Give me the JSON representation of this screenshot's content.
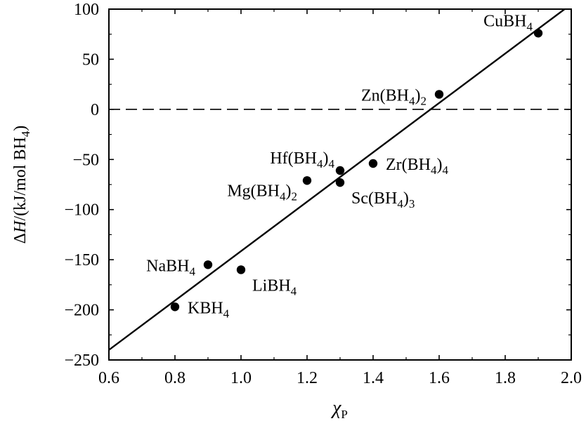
{
  "chart_data": {
    "type": "scatter",
    "xlabel_symbol": "χ",
    "xlabel_sub": "P",
    "ylabel_parts": [
      "ΔH",
      "/(kJ/mol  BH",
      "4",
      ")"
    ],
    "xlim": [
      0.6,
      2.0
    ],
    "ylim": [
      -250,
      100
    ],
    "xticks": [
      0.6,
      0.8,
      1.0,
      1.2,
      1.4,
      1.6,
      1.8,
      2.0
    ],
    "xtick_labels": [
      "0.6",
      "0.8",
      "1.0",
      "1.2",
      "1.4",
      "1.6",
      "1.8",
      "2.0"
    ],
    "yticks": [
      -250,
      -200,
      -150,
      -100,
      -50,
      0,
      50,
      100
    ],
    "ytick_labels": [
      "−250",
      "−200",
      "−150",
      "−100",
      "−50",
      "0",
      "50",
      "100"
    ],
    "reference_line_y": 0,
    "fit_line": {
      "x": [
        0.6,
        1.98
      ],
      "y": [
        -240,
        100
      ]
    },
    "points": [
      {
        "x": 0.8,
        "y": -197,
        "label": "KBH",
        "sub": "4",
        "suffix": "",
        "suffix_sub": "",
        "anchor": "right"
      },
      {
        "x": 0.9,
        "y": -155,
        "label": "NaBH",
        "sub": "4",
        "suffix": "",
        "suffix_sub": "",
        "anchor": "left"
      },
      {
        "x": 1.0,
        "y": -160,
        "label": "LiBH",
        "sub": "4",
        "suffix": "",
        "suffix_sub": "",
        "anchor": "below-right"
      },
      {
        "x": 1.2,
        "y": -71,
        "label": "Mg(BH",
        "sub": "4",
        "suffix": ")",
        "suffix_sub": "2",
        "anchor": "below-left"
      },
      {
        "x": 1.3,
        "y": -61,
        "label": "Hf(BH",
        "sub": "4",
        "suffix": ")",
        "suffix_sub": "4",
        "anchor": "above-left"
      },
      {
        "x": 1.3,
        "y": -73,
        "label": "Sc(BH",
        "sub": "4",
        "suffix": ")",
        "suffix_sub": "3",
        "anchor": "below-right"
      },
      {
        "x": 1.4,
        "y": -54,
        "label": "Zr(BH",
        "sub": "4",
        "suffix": ")",
        "suffix_sub": "4",
        "anchor": "right"
      },
      {
        "x": 1.6,
        "y": 15,
        "label": "Zn(BH",
        "sub": "4",
        "suffix": ")",
        "suffix_sub": "2",
        "anchor": "left"
      },
      {
        "x": 1.9,
        "y": 76,
        "label": "CuBH",
        "sub": "4",
        "suffix": "",
        "suffix_sub": "",
        "anchor": "above-left"
      }
    ]
  }
}
